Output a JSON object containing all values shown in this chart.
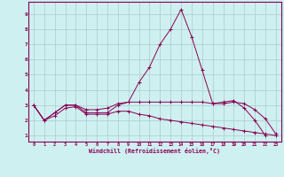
{
  "xlabel": "Windchill (Refroidissement éolien,°C)",
  "background_color": "#cff0f0",
  "grid_color": "#aacccc",
  "line_color": "#880055",
  "x_ticks": [
    0,
    1,
    2,
    3,
    4,
    5,
    6,
    7,
    8,
    9,
    10,
    11,
    12,
    13,
    14,
    15,
    16,
    17,
    18,
    19,
    20,
    21,
    22,
    23
  ],
  "y_ticks": [
    1,
    2,
    3,
    4,
    5,
    6,
    7,
    8,
    9
  ],
  "xlim": [
    -0.5,
    23.5
  ],
  "ylim": [
    0.6,
    9.8
  ],
  "series": [
    [
      3.0,
      2.0,
      2.5,
      3.0,
      3.0,
      2.5,
      2.5,
      2.5,
      3.0,
      3.2,
      4.5,
      5.5,
      7.0,
      8.0,
      9.3,
      7.5,
      5.3,
      3.1,
      3.2,
      3.3,
      2.8,
      2.0,
      1.0,
      null
    ],
    [
      3.0,
      2.0,
      2.5,
      3.0,
      3.0,
      2.7,
      2.7,
      2.8,
      3.1,
      3.2,
      3.2,
      3.2,
      3.2,
      3.2,
      3.2,
      3.2,
      3.2,
      3.1,
      3.1,
      3.2,
      3.1,
      2.7,
      2.1,
      1.1
    ],
    [
      3.0,
      2.0,
      2.3,
      2.8,
      2.9,
      2.4,
      2.4,
      2.4,
      2.6,
      2.6,
      2.4,
      2.3,
      2.1,
      2.0,
      1.9,
      1.8,
      1.7,
      1.6,
      1.5,
      1.4,
      1.3,
      1.2,
      1.1,
      1.0
    ]
  ]
}
